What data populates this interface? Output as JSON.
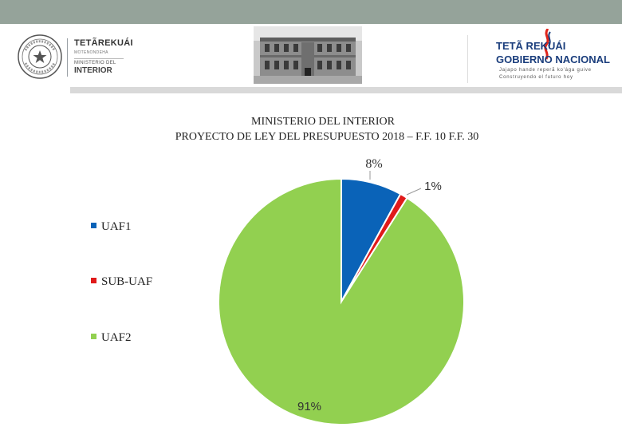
{
  "header": {
    "ministry_brand": "TETÃREKUÁI",
    "ministry_brand_sub": "MOTENONDEHA",
    "ministry_label": "MINISTERIO DEL",
    "ministry_name": "INTERIOR",
    "gov_line1": "TETÃ REKUÁI",
    "gov_line2": "GOBIERNO NACIONAL",
    "gov_tagline1": "Jajapo hande reperã ko'ága guive",
    "gov_tagline2": "Construyendo el futuro hoy"
  },
  "colors": {
    "topbar": "#95a39a",
    "gov_blue": "#1a3d7c",
    "gov_red": "#e0251b"
  },
  "chart_data": {
    "type": "pie",
    "title_line1": "MINISTERIO DEL INTERIOR",
    "title_line2": "PROYECTO DE LEY DEL PRESUPUESTO 2018 – F.F. 10 F.F. 30",
    "legend_position": "left",
    "slices": [
      {
        "name": "UAF1",
        "value": 8,
        "label": "8%",
        "color": "#0a63b8"
      },
      {
        "name": "SUB-UAF",
        "value": 1,
        "label": "1%",
        "color": "#e01a1a"
      },
      {
        "name": "UAF2",
        "value": 91,
        "label": "91%",
        "color": "#92d050"
      }
    ]
  }
}
